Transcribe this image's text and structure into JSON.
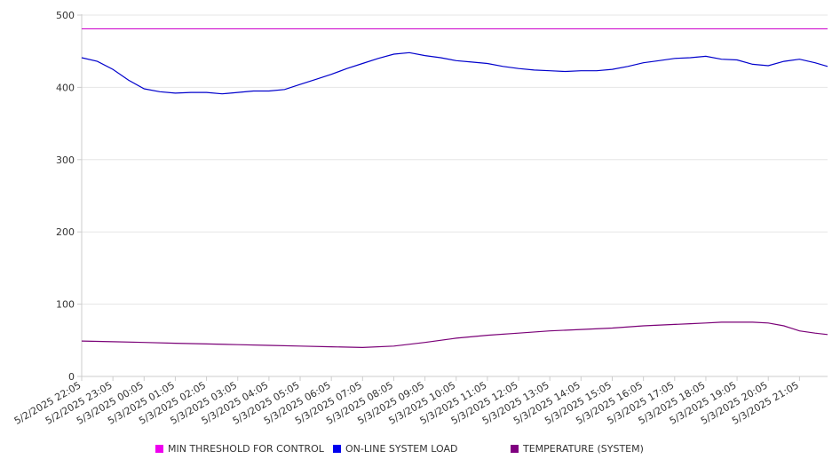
{
  "chart_data": {
    "type": "line",
    "title": "",
    "xlabel": "",
    "ylabel": "",
    "ylim": [
      0,
      500
    ],
    "yticks": [
      0,
      100,
      200,
      300,
      400,
      500
    ],
    "grid": true,
    "legend_position": "bottom",
    "x_range_hours": [
      0,
      23.9
    ],
    "x_tick_labels": [
      "5/2/2025 22:05",
      "5/2/2025 23:05",
      "5/3/2025 00:05",
      "5/3/2025 01:05",
      "5/3/2025 02:05",
      "5/3/2025 03:05",
      "5/3/2025 04:05",
      "5/3/2025 05:05",
      "5/3/2025 06:05",
      "5/3/2025 07:05",
      "5/3/2025 08:05",
      "5/3/2025 09:05",
      "5/3/2025 10:05",
      "5/3/2025 11:05",
      "5/3/2025 12:05",
      "5/3/2025 13:05",
      "5/3/2025 14:05",
      "5/3/2025 15:05",
      "5/3/2025 16:05",
      "5/3/2025 17:05",
      "5/3/2025 18:05",
      "5/3/2025 19:05",
      "5/3/2025 20:05",
      "5/3/2025 21:05"
    ],
    "series": [
      {
        "name": "MIN THRESHOLD FOR CONTROL",
        "color": "#cc00cc",
        "points": [
          [
            0,
            481
          ],
          [
            23.9,
            481
          ]
        ]
      },
      {
        "name": "ON-LINE SYSTEM LOAD",
        "color": "#0000cc",
        "points": [
          [
            0,
            441
          ],
          [
            0.5,
            436
          ],
          [
            1,
            425
          ],
          [
            1.5,
            410
          ],
          [
            2,
            398
          ],
          [
            2.5,
            394
          ],
          [
            3,
            392
          ],
          [
            3.5,
            393
          ],
          [
            4,
            393
          ],
          [
            4.5,
            391
          ],
          [
            5,
            393
          ],
          [
            5.5,
            395
          ],
          [
            6,
            395
          ],
          [
            6.5,
            397
          ],
          [
            7,
            404
          ],
          [
            7.5,
            411
          ],
          [
            8,
            418
          ],
          [
            8.5,
            426
          ],
          [
            9,
            433
          ],
          [
            9.5,
            440
          ],
          [
            10,
            446
          ],
          [
            10.5,
            448
          ],
          [
            11,
            444
          ],
          [
            11.5,
            441
          ],
          [
            12,
            437
          ],
          [
            12.5,
            435
          ],
          [
            13,
            433
          ],
          [
            13.5,
            429
          ],
          [
            14,
            426
          ],
          [
            14.5,
            424
          ],
          [
            15,
            423
          ],
          [
            15.5,
            422
          ],
          [
            16,
            423
          ],
          [
            16.5,
            423
          ],
          [
            17,
            425
          ],
          [
            17.5,
            429
          ],
          [
            18,
            434
          ],
          [
            18.5,
            437
          ],
          [
            19,
            440
          ],
          [
            19.5,
            441
          ],
          [
            20,
            443
          ],
          [
            20.5,
            439
          ],
          [
            21,
            438
          ],
          [
            21.5,
            432
          ],
          [
            22,
            430
          ],
          [
            22.5,
            436
          ],
          [
            23,
            439
          ],
          [
            23.5,
            434
          ],
          [
            23.9,
            429
          ]
        ]
      },
      {
        "name": "TEMPERATURE (SYSTEM)",
        "color": "#7a0077",
        "points": [
          [
            0,
            49
          ],
          [
            1,
            48
          ],
          [
            2,
            47
          ],
          [
            3,
            46
          ],
          [
            4,
            45
          ],
          [
            5,
            44
          ],
          [
            6,
            43
          ],
          [
            7,
            42
          ],
          [
            8,
            41
          ],
          [
            9,
            40
          ],
          [
            10,
            42
          ],
          [
            11,
            47
          ],
          [
            12,
            53
          ],
          [
            13,
            57
          ],
          [
            14,
            60
          ],
          [
            15,
            63
          ],
          [
            16,
            65
          ],
          [
            17,
            67
          ],
          [
            18,
            70
          ],
          [
            19,
            72
          ],
          [
            19.5,
            73
          ],
          [
            20,
            74
          ],
          [
            20.5,
            75
          ],
          [
            21,
            75
          ],
          [
            21.5,
            75
          ],
          [
            22,
            74
          ],
          [
            22.5,
            70
          ],
          [
            23,
            63
          ],
          [
            23.5,
            60
          ],
          [
            23.9,
            58
          ]
        ]
      }
    ]
  }
}
